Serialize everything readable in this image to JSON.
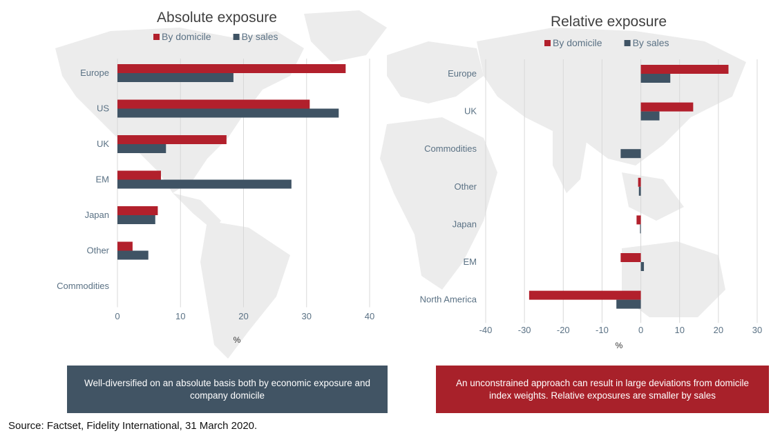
{
  "colors": {
    "domicile": "#b2202c",
    "sales": "#3f5364",
    "axis_text": "#5a7184",
    "title_text": "#404040",
    "map": "#ececec",
    "grid": "#d8d8d8"
  },
  "chart_data": [
    {
      "type": "bar",
      "orientation": "horizontal",
      "title": "Absolute exposure",
      "xlabel": "%",
      "xlim": [
        0,
        40
      ],
      "xticks": [
        0,
        10,
        20,
        30,
        40
      ],
      "legend_position": "top",
      "categories": [
        "Europe",
        "US",
        "UK",
        "EM",
        "Japan",
        "Other",
        "Commodities"
      ],
      "series": [
        {
          "name": "By domicile",
          "values": [
            36.2,
            30.5,
            17.3,
            6.9,
            6.4,
            2.4,
            0
          ]
        },
        {
          "name": "By sales",
          "values": [
            18.4,
            35.1,
            7.7,
            27.6,
            6.0,
            4.9,
            0
          ]
        }
      ]
    },
    {
      "type": "bar",
      "orientation": "horizontal",
      "title": "Relative exposure",
      "xlabel": "%",
      "xlim": [
        -40,
        30
      ],
      "xticks": [
        -40,
        -30,
        -20,
        -10,
        0,
        10,
        20,
        30
      ],
      "legend_position": "top",
      "categories": [
        "Europe",
        "UK",
        "Commodities",
        "Other",
        "Japan",
        "EM",
        "North America"
      ],
      "series": [
        {
          "name": "By domicile",
          "values": [
            22.6,
            13.5,
            0,
            -0.7,
            -1.1,
            -5.2,
            -28.8
          ]
        },
        {
          "name": "By sales",
          "values": [
            7.6,
            4.8,
            -5.2,
            -0.5,
            -0.2,
            0.8,
            -6.3
          ]
        }
      ]
    }
  ],
  "callouts": {
    "left": "Well-diversified on an absolute basis both by economic exposure and company domicile",
    "right": "An unconstrained approach can result in large deviations from domicile index weights. Relative exposures are smaller by sales"
  },
  "source": "Source: Factset, Fidelity International, 31 March 2020."
}
